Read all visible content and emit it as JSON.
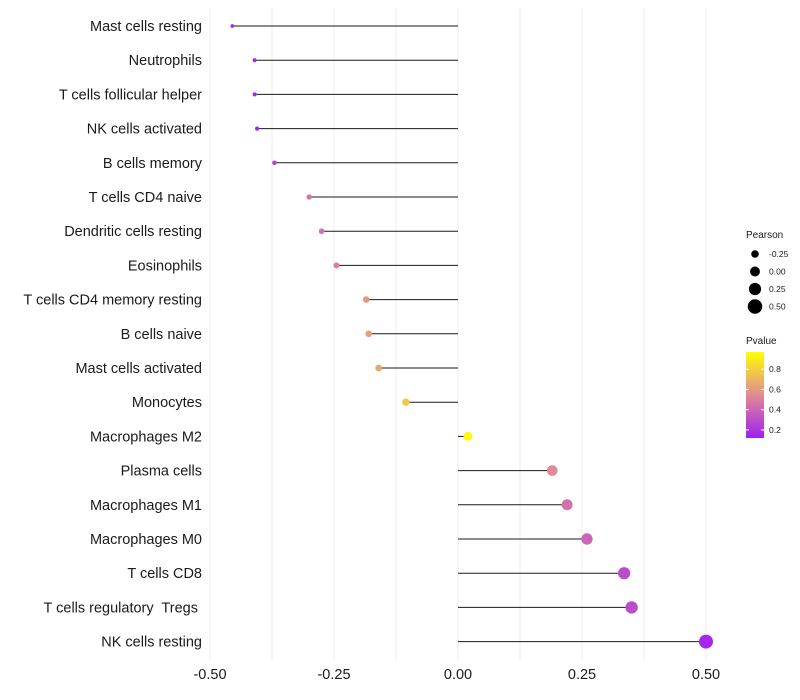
{
  "chart_data": {
    "type": "lollipop",
    "title": "",
    "xlabel": "",
    "ylabel": "",
    "xlim": [
      -0.5,
      0.5
    ],
    "x_ticks": [
      -0.5,
      -0.25,
      0.0,
      0.25,
      0.5
    ],
    "x_tick_labels": [
      "-0.50",
      "-0.25",
      "0.00",
      "0.25",
      "0.50"
    ],
    "grid": true,
    "categories": [
      "Mast cells resting",
      "Neutrophils",
      "T cells follicular helper",
      "NK cells activated",
      "B cells memory",
      "T cells CD4 naive",
      "Dendritic cells resting",
      "Eosinophils",
      "T cells CD4 memory resting",
      "B cells naive",
      "Mast cells activated",
      "Monocytes",
      "Macrophages M2",
      "Plasma cells",
      "Macrophages M1",
      "Macrophages M0",
      "T cells CD8",
      "T cells regulatory  Tregs ",
      "NK cells resting"
    ],
    "pearson": [
      -0.455,
      -0.41,
      -0.41,
      -0.405,
      -0.37,
      -0.3,
      -0.275,
      -0.245,
      -0.185,
      -0.18,
      -0.16,
      -0.105,
      0.02,
      0.19,
      0.22,
      0.26,
      0.335,
      0.35,
      0.5
    ],
    "pvalue": [
      0.15,
      0.15,
      0.15,
      0.15,
      0.25,
      0.45,
      0.45,
      0.5,
      0.6,
      0.62,
      0.65,
      0.78,
      0.95,
      0.55,
      0.45,
      0.4,
      0.3,
      0.3,
      0.15
    ],
    "size_legend": {
      "title": "Pearson",
      "values": [
        -0.25,
        0.0,
        0.25,
        0.5
      ],
      "labels": [
        "-0.25",
        "0.00",
        "0.25",
        "0.50"
      ]
    },
    "color_legend": {
      "title": "Pvalue",
      "ticks": [
        0.8,
        0.6,
        0.4,
        0.2
      ],
      "labels": [
        "0.8",
        "0.6",
        "0.4",
        "0.2"
      ],
      "range": [
        0.12,
        0.97
      ],
      "low_color": "#a020f0",
      "mid_color": "#e08a96",
      "high_color": "#ffff00"
    }
  }
}
